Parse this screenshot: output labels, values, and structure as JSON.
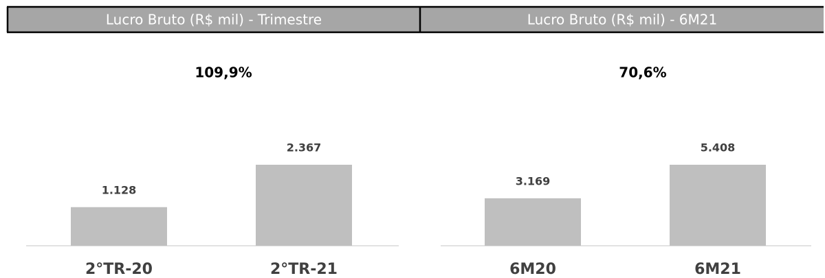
{
  "chart_data": [
    {
      "type": "bar",
      "title": "Lucro Bruto (R$ mil) - Trimestre",
      "annotation": "109,9%",
      "categories": [
        "2°TR-20",
        "2°TR-21"
      ],
      "values": [
        1128,
        2367
      ],
      "value_labels": [
        "1.128",
        "2.367"
      ],
      "color": "#bfbfbf"
    },
    {
      "type": "bar",
      "title": "Lucro Bruto (R$ mil) - 6M21",
      "annotation": "70,6%",
      "categories": [
        "6M20",
        "6M21"
      ],
      "values": [
        3169,
        5408
      ],
      "value_labels": [
        "3.169",
        "5.408"
      ],
      "color": "#bfbfbf"
    }
  ]
}
